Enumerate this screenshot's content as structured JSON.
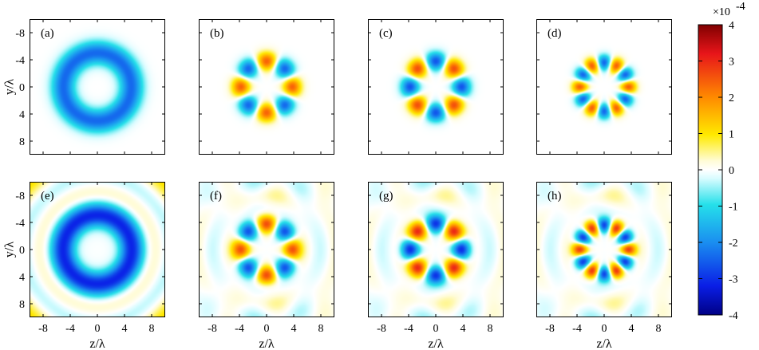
{
  "chart_data": {
    "type": "heatmap",
    "grid": {
      "rows": 2,
      "cols": 4
    },
    "xlabel": "z/λ",
    "ylabel": "y/λ",
    "xlim": [
      -10,
      10
    ],
    "ylim": [
      -10,
      10
    ],
    "x_ticks": [
      "-8",
      "-4",
      "0",
      "4",
      "8"
    ],
    "y_ticks": [
      "-8",
      "-4",
      "0",
      "4",
      "8"
    ],
    "y_ticks_inverted": true,
    "colorbar": {
      "range": [
        -4,
        4
      ],
      "multiplier": "×10",
      "exponent": "-4",
      "ticks": [
        "4",
        "3",
        "2",
        "1",
        "0",
        "-1",
        "-2",
        "-3",
        "-4"
      ]
    },
    "panels": [
      {
        "label": "(a)",
        "pattern": "ring",
        "radius": 5.0,
        "width": 1.7,
        "amplitude": -2.4,
        "n_lobes": 0,
        "rotation_deg": 0,
        "ripple": 0.0
      },
      {
        "label": "(b)",
        "pattern": "lobes",
        "radius": 3.8,
        "width": 1.3,
        "amplitude": 2.4,
        "n_lobes": 2,
        "rotation_deg": 0,
        "ripple": 0.0
      },
      {
        "label": "(c)",
        "pattern": "lobes",
        "radius": 3.8,
        "width": 1.3,
        "amplitude": 2.6,
        "n_lobes": 2,
        "rotation_deg": 45,
        "ripple": 0.0
      },
      {
        "label": "(d)",
        "pattern": "lobes",
        "radius": 3.6,
        "width": 1.1,
        "amplitude": 2.4,
        "n_lobes": 3,
        "rotation_deg": 0,
        "ripple": 0.0
      },
      {
        "label": "(e)",
        "pattern": "ring",
        "radius": 5.0,
        "width": 1.8,
        "amplitude": -3.0,
        "n_lobes": 0,
        "rotation_deg": 0,
        "ripple": 0.35
      },
      {
        "label": "(f)",
        "pattern": "lobes",
        "radius": 3.8,
        "width": 1.3,
        "amplitude": 2.6,
        "n_lobes": 2,
        "rotation_deg": 0,
        "ripple": 0.3
      },
      {
        "label": "(g)",
        "pattern": "lobes",
        "radius": 3.8,
        "width": 1.3,
        "amplitude": 3.0,
        "n_lobes": 2,
        "rotation_deg": 45,
        "ripple": 0.3
      },
      {
        "label": "(h)",
        "pattern": "lobes",
        "radius": 3.6,
        "width": 1.1,
        "amplitude": 2.8,
        "n_lobes": 3,
        "rotation_deg": 0,
        "ripple": 0.3
      }
    ]
  }
}
